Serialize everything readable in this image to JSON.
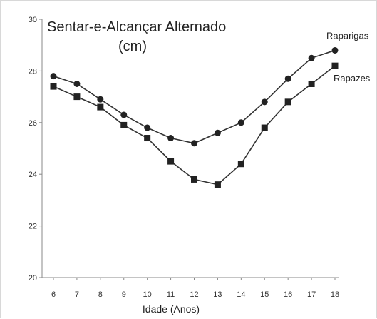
{
  "chart_data": {
    "type": "line",
    "title_line1": "Sentar-e-Alcançar Alternado",
    "title_line2": "(cm)",
    "xlabel": "Idade (Anos)",
    "ylabel": "",
    "x": [
      6,
      7,
      8,
      9,
      10,
      11,
      12,
      13,
      14,
      15,
      16,
      17,
      18
    ],
    "xlim": [
      6,
      18
    ],
    "ylim": [
      20,
      30
    ],
    "yticks": [
      20,
      22,
      24,
      26,
      28,
      30
    ],
    "grid": false,
    "series": [
      {
        "name": "Raparigas",
        "marker": "circle",
        "values": [
          27.8,
          27.5,
          26.9,
          26.3,
          25.8,
          25.4,
          25.2,
          25.6,
          26.0,
          26.8,
          27.7,
          28.5,
          28.8
        ]
      },
      {
        "name": "Rapazes",
        "marker": "square",
        "values": [
          27.4,
          27.0,
          26.6,
          25.9,
          25.4,
          24.5,
          23.8,
          23.6,
          24.4,
          25.8,
          26.8,
          27.5,
          28.2
        ]
      }
    ],
    "colors": {
      "line": "#333333",
      "marker": "#222222",
      "axis": "#888888"
    }
  }
}
